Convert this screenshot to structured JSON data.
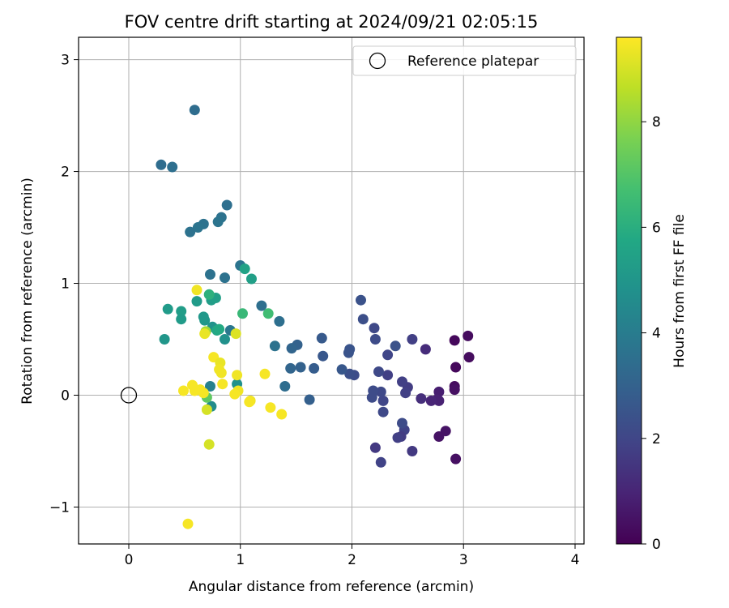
{
  "chart_data": {
    "type": "scatter",
    "title": "FOV centre drift starting at 2024/09/21 02:05:15",
    "xlabel": "Angular distance from reference (arcmin)",
    "ylabel": "Rotation from reference (arcmin)",
    "xlim": [
      -0.45,
      4.08
    ],
    "ylim": [
      -1.33,
      3.2
    ],
    "xticks": [
      "0",
      "1",
      "2",
      "3",
      "4"
    ],
    "yticks": [
      "−1",
      "0",
      "1",
      "2",
      "3"
    ],
    "xtick_values": [
      0,
      1,
      2,
      3,
      4
    ],
    "ytick_values": [
      -1,
      0,
      1,
      2,
      3
    ],
    "grid": true,
    "legend": {
      "position": "top-right",
      "label": "Reference platepar"
    },
    "reference_point": {
      "x": 0,
      "y": 0,
      "marker": "hollow-circle"
    },
    "colorbar": {
      "label": "Hours from first FF file",
      "colormap": "viridis",
      "range": [
        0,
        9.6
      ],
      "ticks": [
        "0",
        "2",
        "4",
        "6",
        "8"
      ],
      "tick_values": [
        0,
        2,
        4,
        6,
        8
      ]
    },
    "points": [
      {
        "x": 2.92,
        "y": 0.49,
        "c": 0.2
      },
      {
        "x": 3.04,
        "y": 0.53,
        "c": 0.3
      },
      {
        "x": 3.05,
        "y": 0.34,
        "c": 0.3
      },
      {
        "x": 2.93,
        "y": 0.25,
        "c": 0.2
      },
      {
        "x": 2.92,
        "y": 0.08,
        "c": 0.3
      },
      {
        "x": 2.92,
        "y": 0.05,
        "c": 0.4
      },
      {
        "x": 2.93,
        "y": -0.57,
        "c": 0.4
      },
      {
        "x": 2.84,
        "y": -0.32,
        "c": 0.5
      },
      {
        "x": 2.78,
        "y": -0.37,
        "c": 0.5
      },
      {
        "x": 2.78,
        "y": 0.03,
        "c": 0.8
      },
      {
        "x": 2.78,
        "y": -0.05,
        "c": 0.9
      },
      {
        "x": 2.76,
        "y": -0.04,
        "c": 0.9
      },
      {
        "x": 2.71,
        "y": -0.05,
        "c": 1.0
      },
      {
        "x": 2.66,
        "y": 0.41,
        "c": 1.2
      },
      {
        "x": 2.62,
        "y": -0.03,
        "c": 1.3
      },
      {
        "x": 2.54,
        "y": 0.5,
        "c": 1.8
      },
      {
        "x": 2.54,
        "y": -0.5,
        "c": 1.6
      },
      {
        "x": 2.5,
        "y": 0.07,
        "c": 1.7
      },
      {
        "x": 2.48,
        "y": 0.02,
        "c": 1.8
      },
      {
        "x": 2.45,
        "y": 0.12,
        "c": 1.8
      },
      {
        "x": 2.47,
        "y": -0.31,
        "c": 1.9
      },
      {
        "x": 2.45,
        "y": -0.25,
        "c": 2.2
      },
      {
        "x": 2.44,
        "y": -0.37,
        "c": 1.7
      },
      {
        "x": 2.41,
        "y": -0.38,
        "c": 1.8
      },
      {
        "x": 2.39,
        "y": 0.44,
        "c": 2.4
      },
      {
        "x": 2.32,
        "y": 0.18,
        "c": 1.8
      },
      {
        "x": 2.32,
        "y": 0.36,
        "c": 2.0
      },
      {
        "x": 2.28,
        "y": -0.05,
        "c": 2.0
      },
      {
        "x": 2.28,
        "y": -0.15,
        "c": 2.1
      },
      {
        "x": 2.26,
        "y": -0.6,
        "c": 1.9
      },
      {
        "x": 2.26,
        "y": 0.03,
        "c": 2.1
      },
      {
        "x": 2.24,
        "y": 0.21,
        "c": 2.1
      },
      {
        "x": 2.21,
        "y": -0.47,
        "c": 1.6
      },
      {
        "x": 2.2,
        "y": 0.6,
        "c": 2.1
      },
      {
        "x": 2.21,
        "y": 0.5,
        "c": 2.2
      },
      {
        "x": 2.19,
        "y": 0.04,
        "c": 2.2
      },
      {
        "x": 2.18,
        "y": -0.02,
        "c": 2.2
      },
      {
        "x": 2.1,
        "y": 0.68,
        "c": 2.3
      },
      {
        "x": 2.08,
        "y": 0.85,
        "c": 2.4
      },
      {
        "x": 2.02,
        "y": 0.18,
        "c": 2.2
      },
      {
        "x": 1.98,
        "y": 0.19,
        "c": 2.3
      },
      {
        "x": 1.98,
        "y": 0.41,
        "c": 2.5
      },
      {
        "x": 1.97,
        "y": 0.38,
        "c": 2.5
      },
      {
        "x": 1.91,
        "y": 0.23,
        "c": 2.6
      },
      {
        "x": 1.74,
        "y": 0.35,
        "c": 2.6
      },
      {
        "x": 1.73,
        "y": 0.51,
        "c": 2.7
      },
      {
        "x": 1.66,
        "y": 0.24,
        "c": 2.8
      },
      {
        "x": 1.62,
        "y": -0.04,
        "c": 2.9
      },
      {
        "x": 1.54,
        "y": 0.25,
        "c": 3.0
      },
      {
        "x": 1.51,
        "y": 0.45,
        "c": 3.0
      },
      {
        "x": 1.46,
        "y": 0.42,
        "c": 3.1
      },
      {
        "x": 1.45,
        "y": 0.24,
        "c": 3.1
      },
      {
        "x": 1.4,
        "y": 0.08,
        "c": 3.4
      },
      {
        "x": 1.35,
        "y": 0.66,
        "c": 3.5
      },
      {
        "x": 1.31,
        "y": 0.44,
        "c": 3.6
      },
      {
        "x": 1.19,
        "y": 0.8,
        "c": 3.5
      },
      {
        "x": 1.0,
        "y": 1.16,
        "c": 3.7
      },
      {
        "x": 0.86,
        "y": 1.05,
        "c": 3.6
      },
      {
        "x": 0.73,
        "y": 1.08,
        "c": 3.6
      },
      {
        "x": 0.88,
        "y": 1.7,
        "c": 3.5
      },
      {
        "x": 0.83,
        "y": 1.59,
        "c": 3.6
      },
      {
        "x": 0.8,
        "y": 1.55,
        "c": 3.7
      },
      {
        "x": 0.67,
        "y": 1.53,
        "c": 3.6
      },
      {
        "x": 0.62,
        "y": 1.5,
        "c": 3.7
      },
      {
        "x": 0.55,
        "y": 1.46,
        "c": 3.6
      },
      {
        "x": 0.59,
        "y": 2.55,
        "c": 3.4
      },
      {
        "x": 0.29,
        "y": 2.06,
        "c": 3.4
      },
      {
        "x": 0.39,
        "y": 2.04,
        "c": 3.5
      },
      {
        "x": 0.91,
        "y": 0.58,
        "c": 3.8
      },
      {
        "x": 0.73,
        "y": 0.08,
        "c": 4.2
      },
      {
        "x": 0.74,
        "y": -0.1,
        "c": 4.6
      },
      {
        "x": 0.97,
        "y": 0.1,
        "c": 4.8
      },
      {
        "x": 0.86,
        "y": 0.5,
        "c": 4.8
      },
      {
        "x": 0.75,
        "y": 0.61,
        "c": 4.9
      },
      {
        "x": 0.68,
        "y": 0.67,
        "c": 5.0
      },
      {
        "x": 0.67,
        "y": 0.7,
        "c": 5.1
      },
      {
        "x": 0.32,
        "y": 0.5,
        "c": 5.0
      },
      {
        "x": 0.35,
        "y": 0.77,
        "c": 5.2
      },
      {
        "x": 0.47,
        "y": 0.75,
        "c": 5.3
      },
      {
        "x": 0.47,
        "y": 0.68,
        "c": 5.2
      },
      {
        "x": 0.61,
        "y": 0.84,
        "c": 5.2
      },
      {
        "x": 0.74,
        "y": 0.85,
        "c": 5.3
      },
      {
        "x": 0.78,
        "y": 0.87,
        "c": 5.4
      },
      {
        "x": 1.1,
        "y": 1.04,
        "c": 5.4
      },
      {
        "x": 1.04,
        "y": 1.13,
        "c": 5.5
      },
      {
        "x": 0.79,
        "y": 0.58,
        "c": 5.7
      },
      {
        "x": 0.81,
        "y": 0.59,
        "c": 5.8
      },
      {
        "x": 0.72,
        "y": 0.9,
        "c": 6.1
      },
      {
        "x": 1.02,
        "y": 0.73,
        "c": 6.4
      },
      {
        "x": 1.25,
        "y": 0.73,
        "c": 6.6
      },
      {
        "x": 0.7,
        "y": -0.02,
        "c": 7.2
      },
      {
        "x": 0.69,
        "y": 0.57,
        "c": 8.3
      },
      {
        "x": 0.7,
        "y": -0.13,
        "c": 9.0
      },
      {
        "x": 0.96,
        "y": 0.55,
        "c": 9.1
      },
      {
        "x": 0.72,
        "y": -0.44,
        "c": 9.0
      },
      {
        "x": 0.68,
        "y": 0.55,
        "c": 9.3
      },
      {
        "x": 0.61,
        "y": 0.94,
        "c": 9.4
      },
      {
        "x": 0.76,
        "y": 0.34,
        "c": 9.5
      },
      {
        "x": 0.82,
        "y": 0.29,
        "c": 9.3
      },
      {
        "x": 0.81,
        "y": 0.23,
        "c": 9.4
      },
      {
        "x": 0.83,
        "y": 0.2,
        "c": 9.4
      },
      {
        "x": 0.97,
        "y": 0.18,
        "c": 9.4
      },
      {
        "x": 0.84,
        "y": 0.1,
        "c": 9.5
      },
      {
        "x": 0.98,
        "y": 0.04,
        "c": 9.4
      },
      {
        "x": 0.95,
        "y": 0.01,
        "c": 9.5
      },
      {
        "x": 0.67,
        "y": 0.02,
        "c": 9.5
      },
      {
        "x": 0.64,
        "y": 0.05,
        "c": 9.5
      },
      {
        "x": 0.59,
        "y": 0.04,
        "c": 9.5
      },
      {
        "x": 0.57,
        "y": 0.09,
        "c": 9.5
      },
      {
        "x": 0.49,
        "y": 0.04,
        "c": 9.5
      },
      {
        "x": 1.09,
        "y": -0.05,
        "c": 9.4
      },
      {
        "x": 1.08,
        "y": -0.06,
        "c": 9.5
      },
      {
        "x": 1.27,
        "y": -0.11,
        "c": 9.5
      },
      {
        "x": 1.37,
        "y": -0.17,
        "c": 9.5
      },
      {
        "x": 1.22,
        "y": 0.19,
        "c": 9.5
      },
      {
        "x": 0.53,
        "y": -1.15,
        "c": 9.5
      }
    ]
  }
}
